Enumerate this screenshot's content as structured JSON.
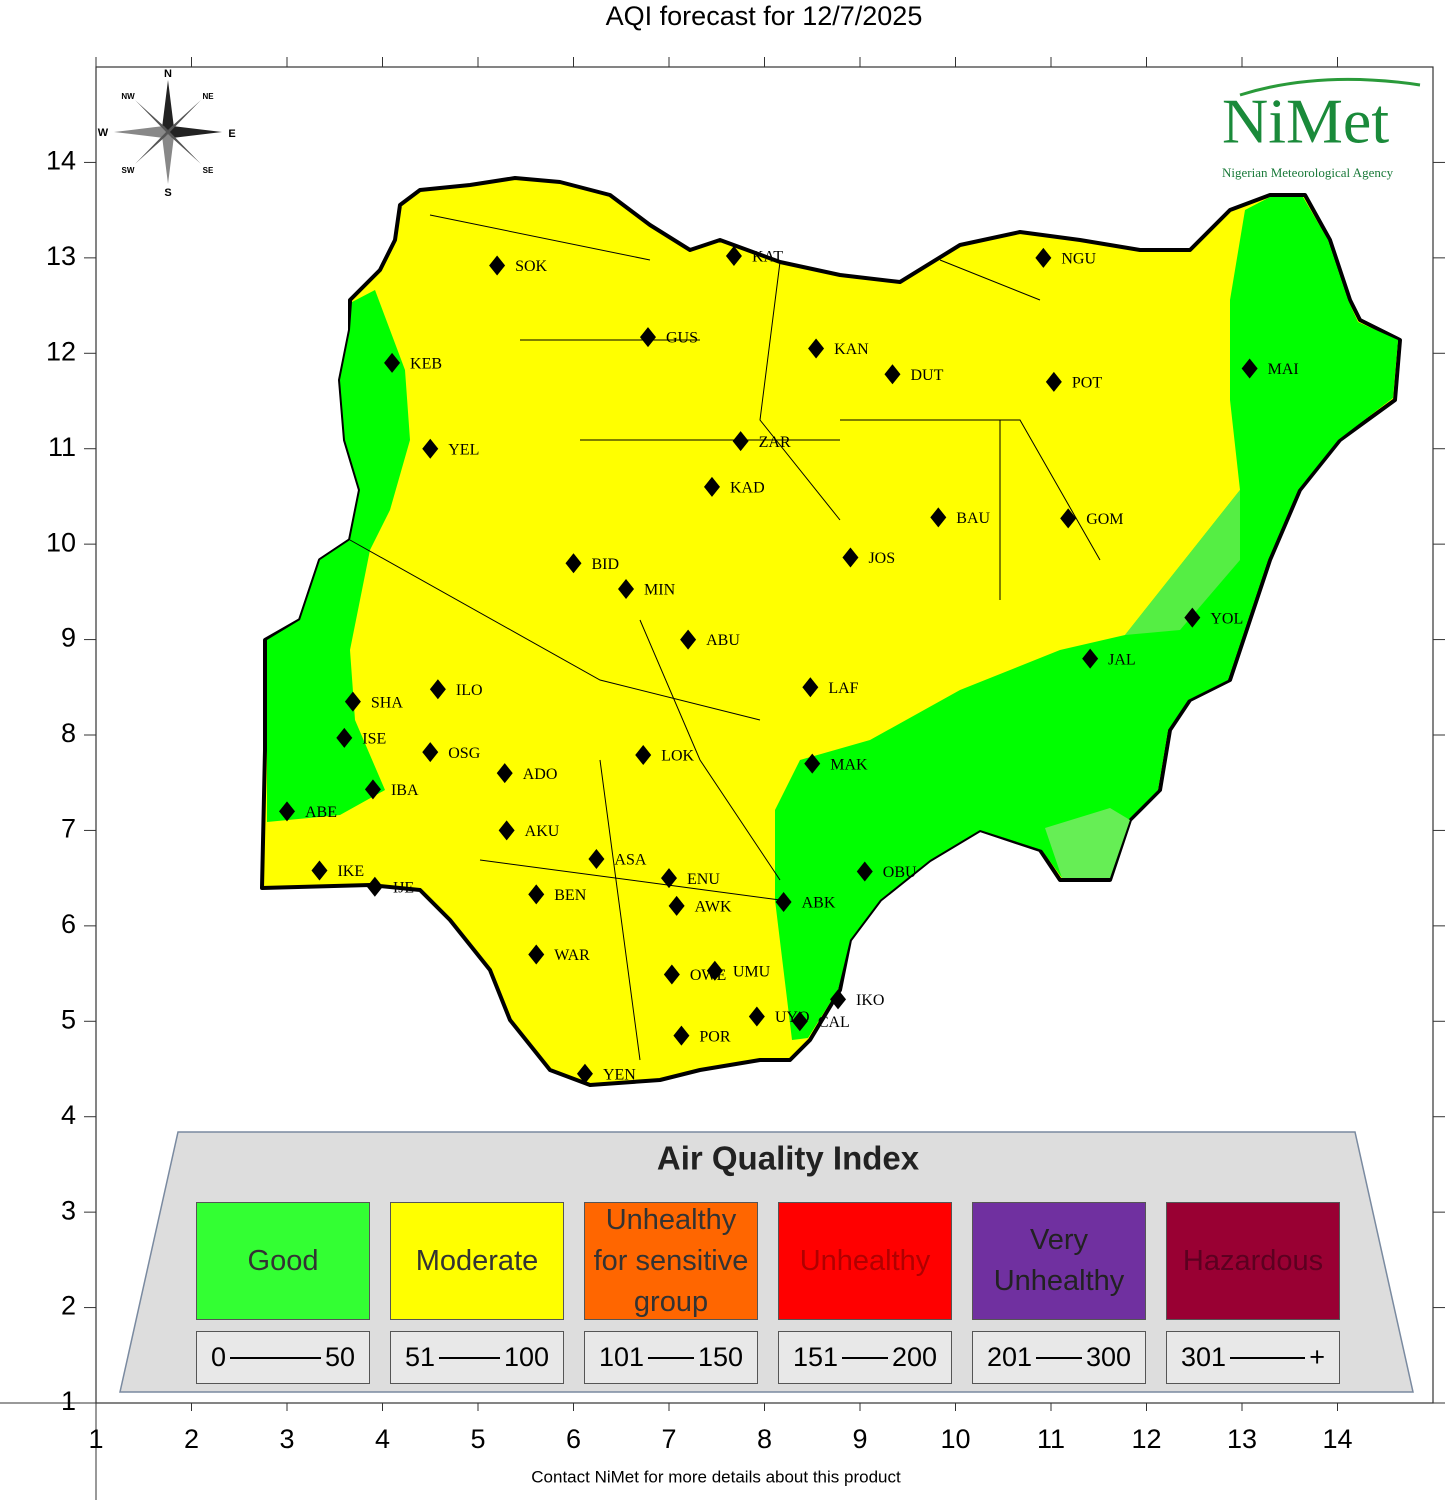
{
  "title": "AQI forecast for 12/7/2025",
  "footer": "Contact NiMet for more details about this product",
  "logo": {
    "name": "NiMet",
    "subtitle": "Nigerian Meteorological Agency"
  },
  "compass": [
    "N",
    "NE",
    "E",
    "SE",
    "S",
    "SW",
    "W",
    "NW"
  ],
  "axes": {
    "xlim": [
      1,
      15
    ],
    "ylim": [
      1,
      15
    ],
    "xticks": [
      1,
      2,
      3,
      4,
      5,
      6,
      7,
      8,
      9,
      10,
      11,
      12,
      13,
      14
    ],
    "yticks": [
      1,
      2,
      3,
      4,
      5,
      6,
      7,
      8,
      9,
      10,
      11,
      12,
      13,
      14
    ]
  },
  "stations": [
    {
      "name": "SOK",
      "lon": 5.2,
      "lat": 12.92
    },
    {
      "name": "KAT",
      "lon": 7.68,
      "lat": 13.02
    },
    {
      "name": "NGU",
      "lon": 10.92,
      "lat": 13.0
    },
    {
      "name": "GUS",
      "lon": 6.78,
      "lat": 12.17
    },
    {
      "name": "KEB",
      "lon": 4.1,
      "lat": 11.9
    },
    {
      "name": "KAN",
      "lon": 8.54,
      "lat": 12.05
    },
    {
      "name": "DUT",
      "lon": 9.34,
      "lat": 11.78
    },
    {
      "name": "POT",
      "lon": 11.03,
      "lat": 11.7
    },
    {
      "name": "MAI",
      "lon": 13.08,
      "lat": 11.84
    },
    {
      "name": "YEL",
      "lon": 4.5,
      "lat": 11.0
    },
    {
      "name": "ZAR",
      "lon": 7.75,
      "lat": 11.08
    },
    {
      "name": "KAD",
      "lon": 7.45,
      "lat": 10.6
    },
    {
      "name": "BAU",
      "lon": 9.82,
      "lat": 10.28
    },
    {
      "name": "GOM",
      "lon": 11.18,
      "lat": 10.27
    },
    {
      "name": "BID",
      "lon": 6.0,
      "lat": 9.8
    },
    {
      "name": "JOS",
      "lon": 8.9,
      "lat": 9.86
    },
    {
      "name": "MIN",
      "lon": 6.55,
      "lat": 9.53
    },
    {
      "name": "YOL",
      "lon": 12.48,
      "lat": 9.23
    },
    {
      "name": "ABU",
      "lon": 7.2,
      "lat": 9.0
    },
    {
      "name": "JAL",
      "lon": 11.41,
      "lat": 8.8
    },
    {
      "name": "SHA",
      "lon": 3.69,
      "lat": 8.35
    },
    {
      "name": "ILO",
      "lon": 4.58,
      "lat": 8.48
    },
    {
      "name": "LAF",
      "lon": 8.48,
      "lat": 8.5
    },
    {
      "name": "ISE",
      "lon": 3.6,
      "lat": 7.97
    },
    {
      "name": "OSG",
      "lon": 4.5,
      "lat": 7.82
    },
    {
      "name": "LOK",
      "lon": 6.73,
      "lat": 7.79
    },
    {
      "name": "MAK",
      "lon": 8.5,
      "lat": 7.7
    },
    {
      "name": "IBA",
      "lon": 3.9,
      "lat": 7.43
    },
    {
      "name": "ADO",
      "lon": 5.28,
      "lat": 7.6
    },
    {
      "name": "ABE",
      "lon": 3.0,
      "lat": 7.2
    },
    {
      "name": "AKU",
      "lon": 5.3,
      "lat": 7.0
    },
    {
      "name": "ASA",
      "lon": 6.24,
      "lat": 6.7
    },
    {
      "name": "IKE",
      "lon": 3.34,
      "lat": 6.58
    },
    {
      "name": "ENU",
      "lon": 7.0,
      "lat": 6.5
    },
    {
      "name": "IJE",
      "lon": 3.92,
      "lat": 6.41
    },
    {
      "name": "OBU",
      "lon": 9.05,
      "lat": 6.57
    },
    {
      "name": "BEN",
      "lon": 5.61,
      "lat": 6.33
    },
    {
      "name": "AWK",
      "lon": 7.08,
      "lat": 6.21
    },
    {
      "name": "ABK",
      "lon": 8.2,
      "lat": 6.25
    },
    {
      "name": "WAR",
      "lon": 5.61,
      "lat": 5.7
    },
    {
      "name": "OWE",
      "lon": 7.03,
      "lat": 5.49
    },
    {
      "name": "UMU",
      "lon": 7.48,
      "lat": 5.53
    },
    {
      "name": "IKO",
      "lon": 8.77,
      "lat": 5.23
    },
    {
      "name": "UYO",
      "lon": 7.92,
      "lat": 5.05
    },
    {
      "name": "CAL",
      "lon": 8.37,
      "lat": 5.0
    },
    {
      "name": "POR",
      "lon": 7.13,
      "lat": 4.85
    },
    {
      "name": "YEN",
      "lon": 6.12,
      "lat": 4.45
    }
  ],
  "legend": {
    "title": "Air Quality Index",
    "items": [
      {
        "label": "Good",
        "color": "#33ff33",
        "text_color": "#333333",
        "min": "0",
        "max": "50"
      },
      {
        "label": "Moderate",
        "color": "#ffff00",
        "text_color": "#333333",
        "min": "51",
        "max": "100"
      },
      {
        "label": "Unhealthy for sensitive group",
        "color": "#ff6600",
        "text_color": "#333333",
        "min": "101",
        "max": "150"
      },
      {
        "label": "Unhealthy",
        "color": "#ff0000",
        "text_color": "#b00000",
        "min": "151",
        "max": "200"
      },
      {
        "label": "Very Unhealthy",
        "color": "#7030a0",
        "text_color": "#222222",
        "min": "201",
        "max": "300"
      },
      {
        "label": "Hazardous",
        "color": "#990033",
        "text_color": "#5c0020",
        "min": "301",
        "max": "+"
      }
    ]
  }
}
